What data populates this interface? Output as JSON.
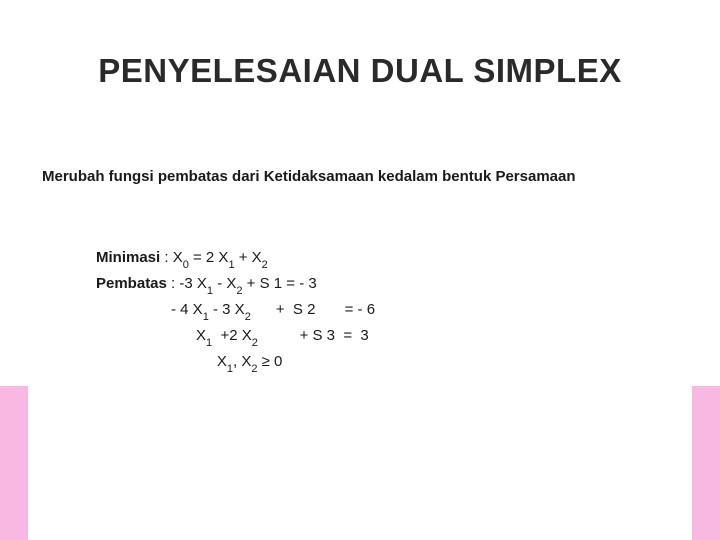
{
  "title": "PENYELESAIAN DUAL SIMPLEX",
  "subtitle": "Merubah fungsi pembatas dari Ketidaksamaan kedalam bentuk Persamaan",
  "minimasi_label": "Minimasi",
  "pembatas_label": "Pembatas",
  "objective": {
    "lhs_var": "X",
    "lhs_sub": "0",
    "terms": [
      {
        "coef": "2",
        "var": "X",
        "sub": "1"
      },
      {
        "op": "+",
        "coef": "",
        "var": "X",
        "sub": "2"
      }
    ]
  },
  "constraints": [
    {
      "terms": "-3 X₁  -   X₂  +  S 1",
      "rhs": "= - 3"
    },
    {
      "terms": "- 4 X₁ - 3 X₂      +  S 2",
      "rhs": "= - 6"
    },
    {
      "terms": "X₁  +2 X₂          + S 3",
      "rhs": "=  3"
    }
  ],
  "nonneg": "X₁, X₂ ≥ 0",
  "colors": {
    "bar": "#f9b8e2",
    "text": "#1a1a1a",
    "title": "#2a2a2a",
    "background": "#ffffff"
  },
  "fontsize": {
    "title": 33,
    "subtitle": 15,
    "body": 15,
    "subscript": 11
  }
}
